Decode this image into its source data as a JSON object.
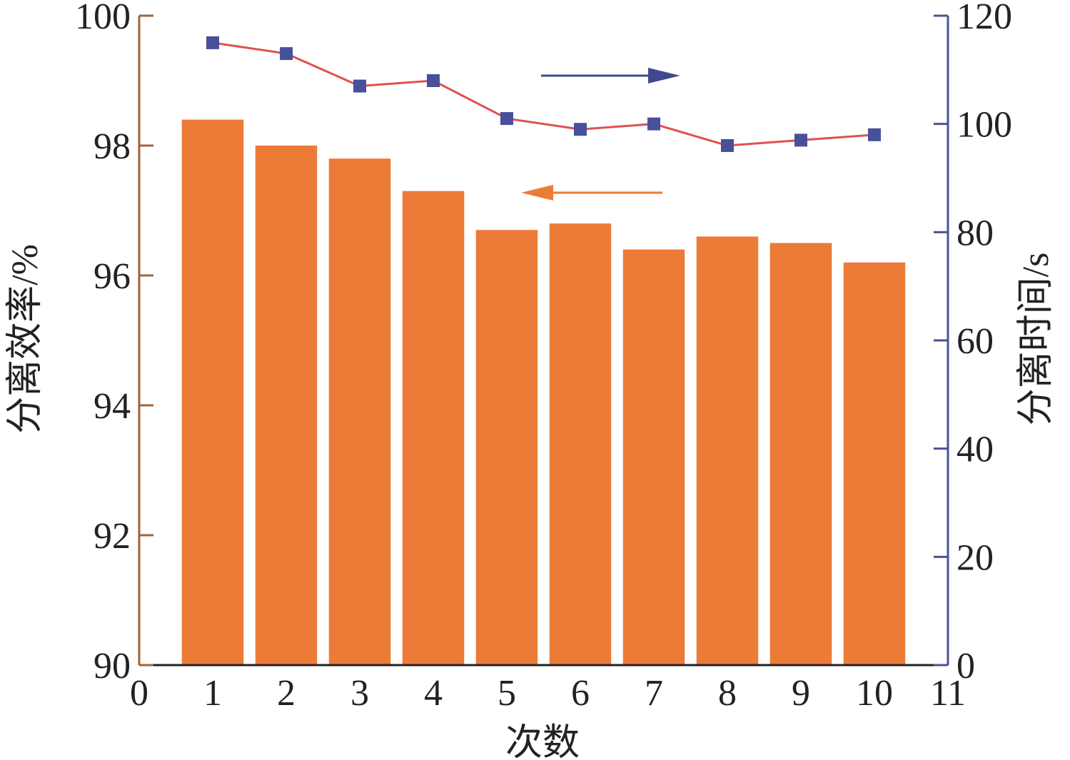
{
  "chart_data": {
    "type": "bar+line",
    "xlabel": "次数",
    "y_left_label": "分离效率/%",
    "y_right_label": "分离时间/s",
    "x_ticks": [
      0,
      1,
      2,
      3,
      4,
      5,
      6,
      7,
      8,
      9,
      10,
      11
    ],
    "y_left_ticks": [
      90,
      92,
      94,
      96,
      98,
      100
    ],
    "y_right_ticks": [
      0,
      20,
      40,
      60,
      80,
      100,
      120
    ],
    "xlim": [
      0,
      11
    ],
    "y_left_lim": [
      90,
      100
    ],
    "y_right_lim": [
      0,
      120
    ],
    "grid": false,
    "x": [
      1,
      2,
      3,
      4,
      5,
      6,
      7,
      8,
      9,
      10
    ],
    "series": [
      {
        "type": "bar",
        "axis": "left",
        "values": [
          98.4,
          98.0,
          97.8,
          97.3,
          96.7,
          96.8,
          96.4,
          96.6,
          96.5,
          96.2
        ],
        "color": "#ed7b38"
      },
      {
        "type": "line",
        "axis": "right",
        "values": [
          115,
          113,
          107,
          108,
          101,
          99,
          100,
          96,
          97,
          98
        ],
        "line_color": "#e0504f",
        "marker_color": "#47509b"
      }
    ],
    "arrows": [
      {
        "direction": "right",
        "points_to_axis": "right",
        "color": "#3f4a8e"
      },
      {
        "direction": "left",
        "points_to_axis": "left",
        "color": "#ed7b38"
      }
    ],
    "colors": {
      "left_axis": "#a0633a",
      "right_axis": "#4a5295",
      "x_axis": "#222222"
    }
  }
}
